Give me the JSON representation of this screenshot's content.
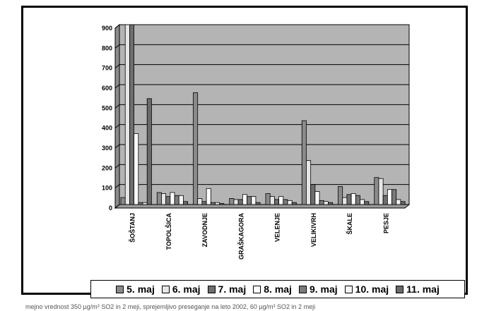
{
  "chart_data": {
    "type": "bar",
    "title": "",
    "xlabel": "",
    "ylabel": "",
    "ylim": [
      0,
      900
    ],
    "yticks": [
      0,
      100,
      200,
      300,
      400,
      500,
      600,
      700,
      800,
      900
    ],
    "grid": true,
    "legend_position": "bottom",
    "categories": [
      "ŠOŠTANJ",
      "TOPOLŠICA",
      "ZAVODNJE",
      "GRAŠKAGORA",
      "VELENJE",
      "VELIKIVRH",
      "ŠKALE",
      "PESJE"
    ],
    "series": [
      {
        "name": "5. maj",
        "color": "#8a8a8a",
        "values": [
          35,
          60,
          560,
          30,
          55,
          420,
          90,
          135
        ]
      },
      {
        "name": "6. maj",
        "color": "#e6e6e6",
        "values": [
          900,
          55,
          30,
          25,
          40,
          220,
          35,
          130
        ]
      },
      {
        "name": "7. maj",
        "color": "#6e6e6e",
        "values": [
          900,
          40,
          15,
          25,
          25,
          100,
          50,
          45
        ]
      },
      {
        "name": "8. maj",
        "color": "#ffffff",
        "values": [
          355,
          60,
          80,
          50,
          40,
          65,
          55,
          75
        ]
      },
      {
        "name": "9. maj",
        "color": "#7a7a7a",
        "values": [
          10,
          45,
          10,
          40,
          25,
          20,
          45,
          75
        ]
      },
      {
        "name": "10. maj",
        "color": "#f4f4f4",
        "values": [
          10,
          45,
          10,
          40,
          20,
          15,
          25,
          25
        ]
      },
      {
        "name": "11. maj",
        "color": "#6a6a6a",
        "values": [
          530,
          15,
          5,
          10,
          10,
          10,
          15,
          15
        ]
      }
    ]
  },
  "caption": "mejno vrednost 350 µg/m³ SO2 in 2 meji, sprejemljivo preseganje na leto 2002, 60 µg/m³ SO2 in 2 meji"
}
